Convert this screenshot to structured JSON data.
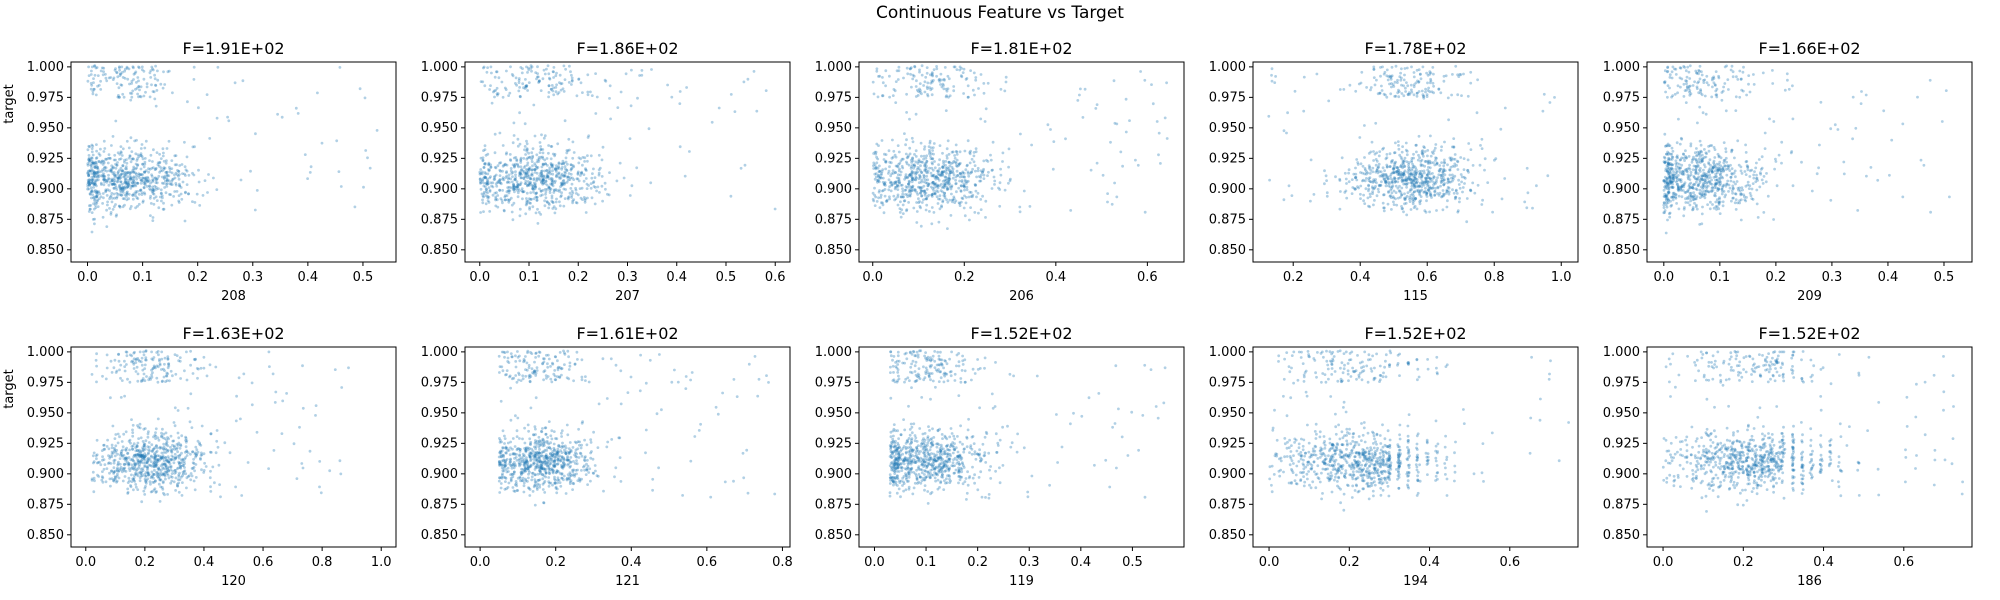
{
  "chart_data": {
    "suptitle": "Continuous Feature vs Target",
    "point_color": "#1f77b4",
    "panels": [
      {
        "type": "scatter",
        "title": "F=1.91E+02",
        "xlabel": "208",
        "ylabel": "target",
        "xlim": [
          -0.03,
          0.56
        ],
        "xticks": [
          "0.0",
          "0.1",
          "0.2",
          "0.3",
          "0.4",
          "0.5"
        ],
        "xtick_values": [
          0,
          0.1,
          0.2,
          0.3,
          0.4,
          0.5
        ],
        "ylim": [
          0.84,
          1.004
        ],
        "yticks": [
          "0.850",
          "0.875",
          "0.900",
          "0.925",
          "0.950",
          "0.975",
          "1.000"
        ],
        "ytick_values": [
          0.85,
          0.875,
          0.9,
          0.925,
          0.95,
          0.975,
          1.0
        ],
        "cluster": {
          "x_center": 0.07,
          "x_spread": 0.06,
          "x_min": 0.0,
          "x_max": 0.53,
          "y_center": 0.908,
          "y_spread": 0.013
        }
      },
      {
        "type": "scatter",
        "title": "F=1.86E+02",
        "xlabel": "207",
        "ylabel": "",
        "xlim": [
          -0.03,
          0.63
        ],
        "xticks": [
          "0.0",
          "0.1",
          "0.2",
          "0.3",
          "0.4",
          "0.5",
          "0.6"
        ],
        "xtick_values": [
          0,
          0.1,
          0.2,
          0.3,
          0.4,
          0.5,
          0.6
        ],
        "ylim": [
          0.84,
          1.004
        ],
        "yticks": [
          "0.850",
          "0.875",
          "0.900",
          "0.925",
          "0.950",
          "0.975",
          "1.000"
        ],
        "ytick_values": [
          0.85,
          0.875,
          0.9,
          0.925,
          0.95,
          0.975,
          1.0
        ],
        "cluster": {
          "x_center": 0.11,
          "x_spread": 0.07,
          "x_min": 0.0,
          "x_max": 0.6,
          "y_center": 0.908,
          "y_spread": 0.013
        }
      },
      {
        "type": "scatter",
        "title": "F=1.81E+02",
        "xlabel": "206",
        "ylabel": "",
        "xlim": [
          -0.03,
          0.68
        ],
        "xticks": [
          "0.0",
          "0.2",
          "0.4",
          "0.6"
        ],
        "xtick_values": [
          0,
          0.2,
          0.4,
          0.6
        ],
        "ylim": [
          0.84,
          1.004
        ],
        "yticks": [
          "0.850",
          "0.875",
          "0.900",
          "0.925",
          "0.950",
          "0.975",
          "1.000"
        ],
        "ytick_values": [
          0.85,
          0.875,
          0.9,
          0.925,
          0.95,
          0.975,
          1.0
        ],
        "cluster": {
          "x_center": 0.12,
          "x_spread": 0.07,
          "x_min": 0.0,
          "x_max": 0.65,
          "y_center": 0.908,
          "y_spread": 0.013
        }
      },
      {
        "type": "scatter",
        "title": "F=1.78E+02",
        "xlabel": "115",
        "ylabel": "",
        "xlim": [
          0.08,
          1.05
        ],
        "xticks": [
          "0.2",
          "0.4",
          "0.6",
          "0.8",
          "1.0"
        ],
        "xtick_values": [
          0.2,
          0.4,
          0.6,
          0.8,
          1.0
        ],
        "ylim": [
          0.84,
          1.004
        ],
        "yticks": [
          "0.850",
          "0.875",
          "0.900",
          "0.925",
          "0.950",
          "0.975",
          "1.000"
        ],
        "ytick_values": [
          0.85,
          0.875,
          0.9,
          0.925,
          0.95,
          0.975,
          1.0
        ],
        "cluster": {
          "x_center": 0.55,
          "x_spread": 0.09,
          "x_min": 0.12,
          "x_max": 1.0,
          "y_center": 0.908,
          "y_spread": 0.012
        }
      },
      {
        "type": "scatter",
        "title": "F=1.66E+02",
        "xlabel": "209",
        "ylabel": "",
        "xlim": [
          -0.03,
          0.55
        ],
        "xticks": [
          "0.0",
          "0.1",
          "0.2",
          "0.3",
          "0.4",
          "0.5"
        ],
        "xtick_values": [
          0,
          0.1,
          0.2,
          0.3,
          0.4,
          0.5
        ],
        "ylim": [
          0.84,
          1.004
        ],
        "yticks": [
          "0.850",
          "0.875",
          "0.900",
          "0.925",
          "0.950",
          "0.975",
          "1.000"
        ],
        "ytick_values": [
          0.85,
          0.875,
          0.9,
          0.925,
          0.95,
          0.975,
          1.0
        ],
        "cluster": {
          "x_center": 0.06,
          "x_spread": 0.06,
          "x_min": 0.0,
          "x_max": 0.52,
          "y_center": 0.908,
          "y_spread": 0.013
        }
      },
      {
        "type": "scatter",
        "title": "F=1.63E+02",
        "xlabel": "120",
        "ylabel": "target",
        "xlim": [
          -0.05,
          1.05
        ],
        "xticks": [
          "0.0",
          "0.2",
          "0.4",
          "0.6",
          "0.8",
          "1.0"
        ],
        "xtick_values": [
          0,
          0.2,
          0.4,
          0.6,
          0.8,
          1.0
        ],
        "ylim": [
          0.84,
          1.004
        ],
        "yticks": [
          "0.850",
          "0.875",
          "0.900",
          "0.925",
          "0.950",
          "0.975",
          "1.000"
        ],
        "ytick_values": [
          0.85,
          0.875,
          0.9,
          0.925,
          0.95,
          0.975,
          1.0
        ],
        "cluster": {
          "x_center": 0.22,
          "x_spread": 0.09,
          "x_min": 0.02,
          "x_max": 0.9,
          "y_center": 0.91,
          "y_spread": 0.012
        }
      },
      {
        "type": "scatter",
        "title": "F=1.61E+02",
        "xlabel": "121",
        "ylabel": "",
        "xlim": [
          -0.04,
          0.82
        ],
        "xticks": [
          "0.0",
          "0.2",
          "0.4",
          "0.6",
          "0.8"
        ],
        "xtick_values": [
          0,
          0.2,
          0.4,
          0.6,
          0.8
        ],
        "ylim": [
          0.84,
          1.004
        ],
        "yticks": [
          "0.850",
          "0.875",
          "0.900",
          "0.925",
          "0.950",
          "0.975",
          "1.000"
        ],
        "ytick_values": [
          0.85,
          0.875,
          0.9,
          0.925,
          0.95,
          0.975,
          1.0
        ],
        "cluster": {
          "x_center": 0.16,
          "x_spread": 0.07,
          "x_min": 0.05,
          "x_max": 0.78,
          "y_center": 0.91,
          "y_spread": 0.012
        }
      },
      {
        "type": "scatter",
        "title": "F=1.52E+02",
        "xlabel": "119",
        "ylabel": "",
        "xlim": [
          -0.03,
          0.6
        ],
        "xticks": [
          "0.0",
          "0.1",
          "0.2",
          "0.3",
          "0.4",
          "0.5"
        ],
        "xtick_values": [
          0,
          0.1,
          0.2,
          0.3,
          0.4,
          0.5
        ],
        "ylim": [
          0.84,
          1.004
        ],
        "yticks": [
          "0.850",
          "0.875",
          "0.900",
          "0.925",
          "0.950",
          "0.975",
          "1.000"
        ],
        "ytick_values": [
          0.85,
          0.875,
          0.9,
          0.925,
          0.95,
          0.975,
          1.0
        ],
        "cluster": {
          "x_center": 0.1,
          "x_spread": 0.06,
          "x_min": 0.03,
          "x_max": 0.57,
          "y_center": 0.91,
          "y_spread": 0.012
        }
      },
      {
        "type": "scatter",
        "title": "F=1.52E+02",
        "xlabel": "194",
        "ylabel": "",
        "xlim": [
          -0.04,
          0.77
        ],
        "xticks": [
          "0.0",
          "0.2",
          "0.4",
          "0.6"
        ],
        "xtick_values": [
          0,
          0.2,
          0.4,
          0.6
        ],
        "ylim": [
          0.84,
          1.004
        ],
        "yticks": [
          "0.850",
          "0.875",
          "0.900",
          "0.925",
          "0.950",
          "0.975",
          "1.000"
        ],
        "ytick_values": [
          0.85,
          0.875,
          0.9,
          0.925,
          0.95,
          0.975,
          1.0
        ],
        "cluster": {
          "x_center": 0.22,
          "x_spread": 0.1,
          "x_min": 0.0,
          "x_max": 0.75,
          "y_center": 0.91,
          "y_spread": 0.012,
          "discrete_from": 0.3,
          "discrete_step": 0.0235
        }
      },
      {
        "type": "scatter",
        "title": "F=1.52E+02",
        "xlabel": "186",
        "ylabel": "",
        "xlim": [
          -0.04,
          0.77
        ],
        "xticks": [
          "0.0",
          "0.2",
          "0.4",
          "0.6"
        ],
        "xtick_values": [
          0,
          0.2,
          0.4,
          0.6
        ],
        "ylim": [
          0.84,
          1.004
        ],
        "yticks": [
          "0.850",
          "0.875",
          "0.900",
          "0.925",
          "0.950",
          "0.975",
          "1.000"
        ],
        "ytick_values": [
          0.85,
          0.875,
          0.9,
          0.925,
          0.95,
          0.975,
          1.0
        ],
        "cluster": {
          "x_center": 0.22,
          "x_spread": 0.1,
          "x_min": 0.0,
          "x_max": 0.75,
          "y_center": 0.91,
          "y_spread": 0.012,
          "discrete_from": 0.3,
          "discrete_step": 0.0235
        }
      }
    ]
  }
}
